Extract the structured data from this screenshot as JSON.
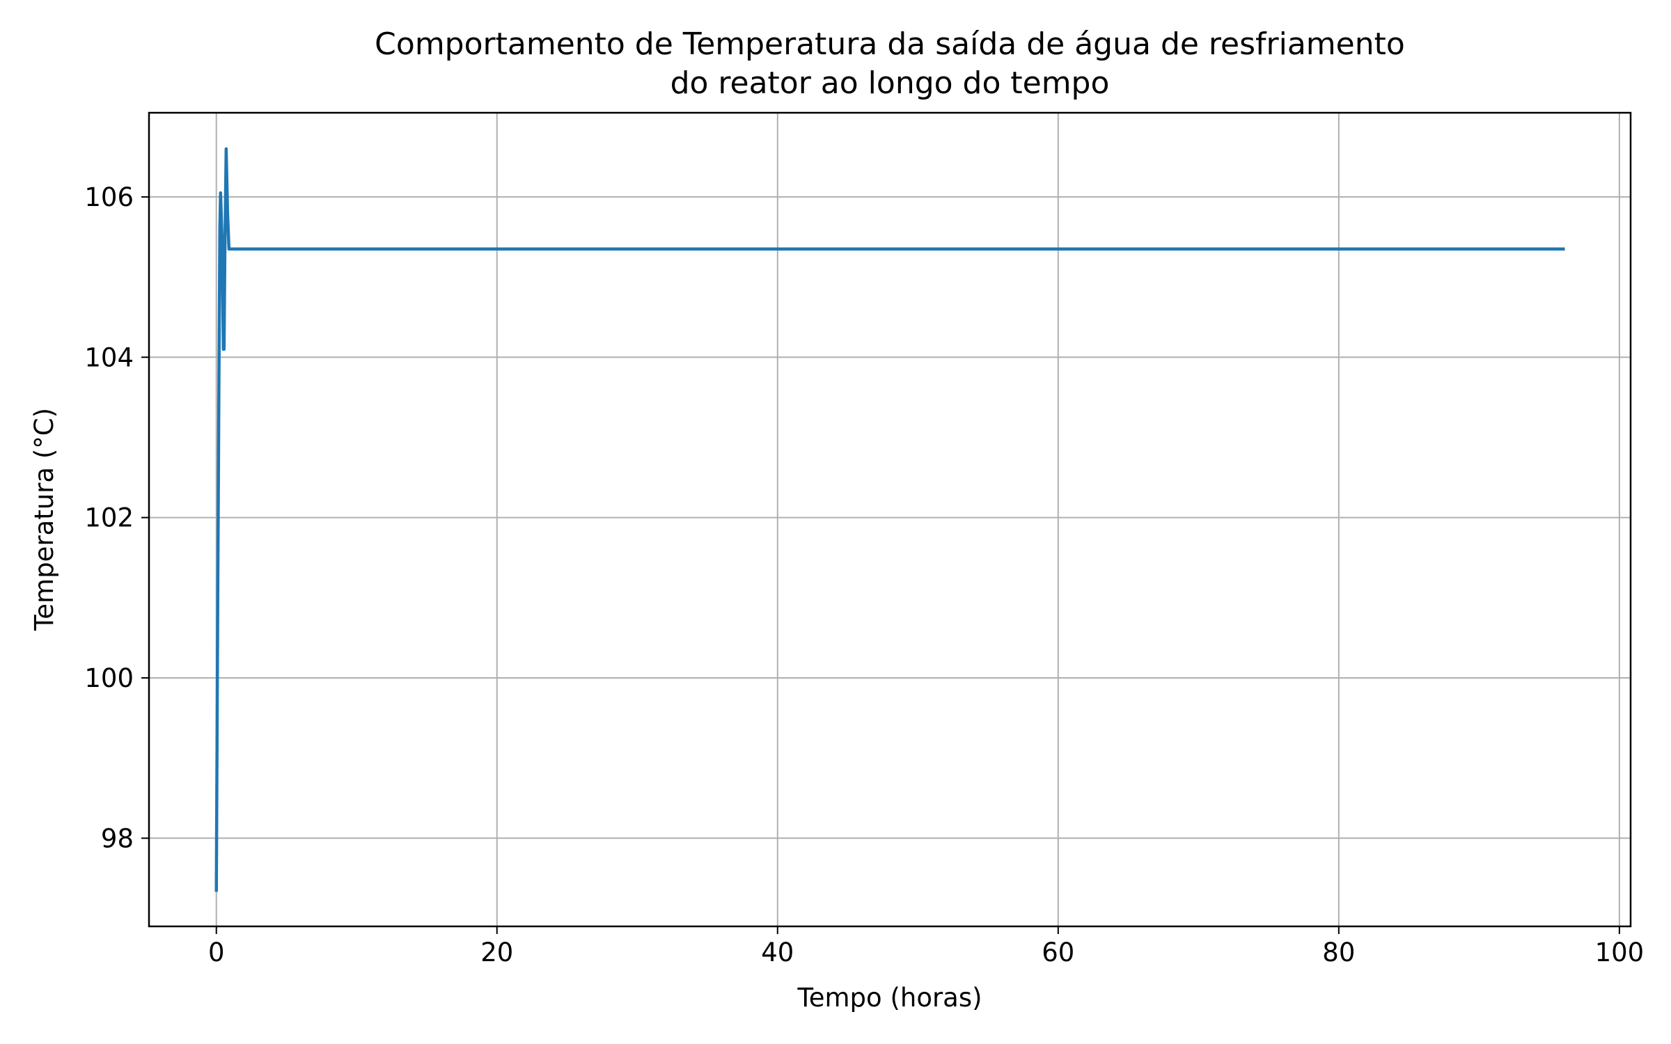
{
  "chart_data": {
    "type": "line",
    "title_lines": [
      "Comportamento de Temperatura da saída de água de resfriamento",
      "do reator ao longo do tempo"
    ],
    "xlabel": "Tempo (horas)",
    "ylabel": "Temperatura (°C)",
    "xlim": [
      -4.8,
      100.8
    ],
    "ylim": [
      96.9,
      107.05
    ],
    "xticks": [
      0,
      20,
      40,
      60,
      80,
      100
    ],
    "xtick_labels": [
      "0",
      "20",
      "40",
      "60",
      "80",
      "100"
    ],
    "yticks": [
      98,
      100,
      102,
      104,
      106
    ],
    "ytick_labels": [
      "98",
      "100",
      "102",
      "104",
      "106"
    ],
    "grid": true,
    "series": [
      {
        "color": "#1f77b4",
        "x": [
          0.0,
          0.1,
          0.2,
          0.25,
          0.3,
          0.4,
          0.5,
          0.55,
          0.6,
          0.7,
          0.8,
          0.9,
          1.0,
          2.0,
          10.0,
          20.0,
          40.0,
          60.0,
          80.0,
          96.0
        ],
        "y": [
          97.35,
          101.0,
          104.2,
          105.6,
          106.05,
          105.5,
          104.1,
          104.1,
          105.2,
          106.6,
          105.8,
          105.35,
          105.35,
          105.35,
          105.35,
          105.35,
          105.35,
          105.35,
          105.35,
          105.35
        ]
      }
    ]
  }
}
